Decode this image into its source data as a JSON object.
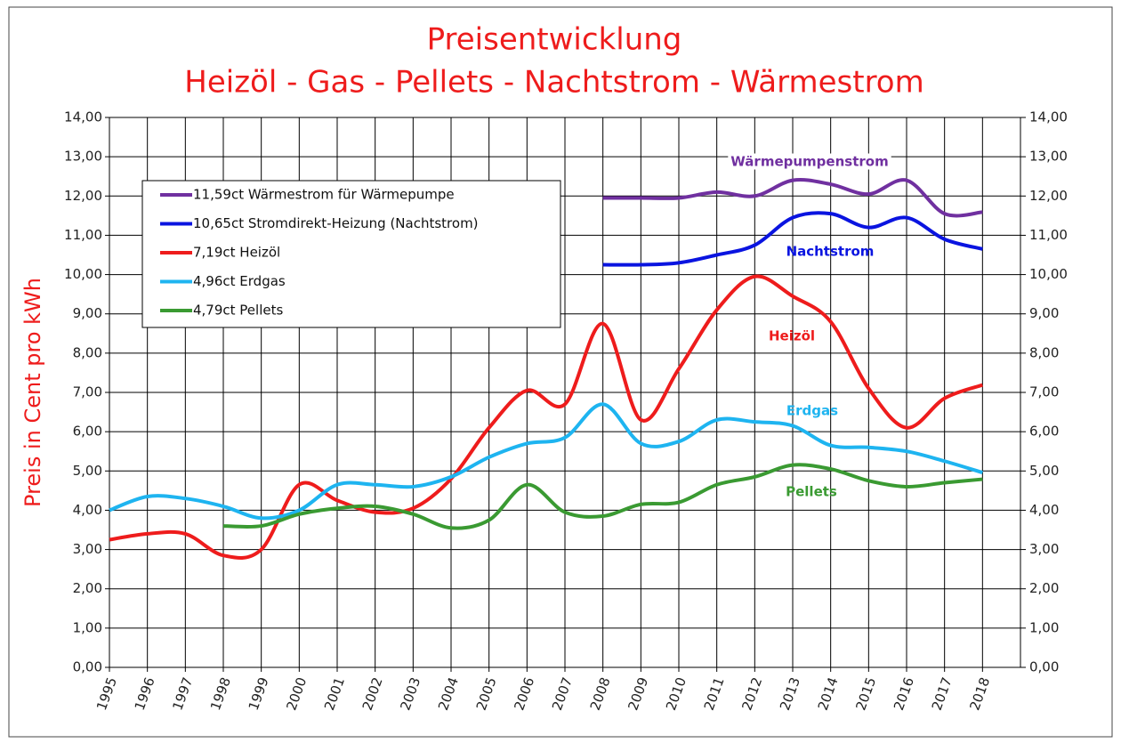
{
  "chart_data": {
    "type": "line",
    "title": [
      "Preisentwicklung",
      "Heizöl - Gas - Pellets - Nachtstrom - Wärmestrom"
    ],
    "y_label": "Preis in Cent pro kWh",
    "x": [
      1995,
      1996,
      1997,
      1998,
      1999,
      2000,
      2001,
      2002,
      2003,
      2004,
      2005,
      2006,
      2007,
      2008,
      2009,
      2010,
      2011,
      2012,
      2013,
      2014,
      2015,
      2016,
      2017,
      2018
    ],
    "xlim": [
      1995,
      2019
    ],
    "xticks": [
      1995,
      1996,
      1997,
      1998,
      1999,
      2000,
      2001,
      2002,
      2003,
      2004,
      2005,
      2006,
      2007,
      2008,
      2009,
      2010,
      2011,
      2012,
      2013,
      2014,
      2015,
      2016,
      2017,
      2018
    ],
    "ylim": [
      0,
      14
    ],
    "yticks": [
      {
        "value": 0,
        "label": "0,00"
      },
      {
        "value": 1,
        "label": "1,00"
      },
      {
        "value": 2,
        "label": "2,00"
      },
      {
        "value": 3,
        "label": "3,00"
      },
      {
        "value": 4,
        "label": "4,00"
      },
      {
        "value": 5,
        "label": "5,00"
      },
      {
        "value": 6,
        "label": "6,00"
      },
      {
        "value": 7,
        "label": "7,00"
      },
      {
        "value": 8,
        "label": "8,00"
      },
      {
        "value": 9,
        "label": "9,00"
      },
      {
        "value": 10,
        "label": "10,00"
      },
      {
        "value": 11,
        "label": "11,00"
      },
      {
        "value": 12,
        "label": "12,00"
      },
      {
        "value": 13,
        "label": "13,00"
      },
      {
        "value": 14,
        "label": "14,00"
      }
    ],
    "y2lim": [
      0,
      14
    ],
    "y2ticks": [
      {
        "value": 0,
        "label": "0,00"
      },
      {
        "value": 1,
        "label": "1,00"
      },
      {
        "value": 2,
        "label": "2,00"
      },
      {
        "value": 3,
        "label": "3,00"
      },
      {
        "value": 4,
        "label": "4,00"
      },
      {
        "value": 5,
        "label": "5,00"
      },
      {
        "value": 6,
        "label": "6,00"
      },
      {
        "value": 7,
        "label": "7,00"
      },
      {
        "value": 8,
        "label": "8,00"
      },
      {
        "value": 9,
        "label": "9,00"
      },
      {
        "value": 10,
        "label": "10,00"
      },
      {
        "value": 11,
        "label": "11,00"
      },
      {
        "value": 12,
        "label": "12,00"
      },
      {
        "value": 13,
        "label": "13,00"
      },
      {
        "value": 14,
        "label": "14,00"
      }
    ],
    "grid": true,
    "legend": "upper left",
    "series": [
      {
        "name": "11,59ct Wärmestrom für Wärmepumpe",
        "color": "#7030a0",
        "annotation": "Wärmepumpenstrom",
        "values": [
          null,
          null,
          null,
          null,
          null,
          null,
          null,
          null,
          null,
          null,
          null,
          null,
          null,
          11.95,
          11.95,
          11.95,
          12.1,
          12.0,
          12.4,
          12.3,
          12.05,
          12.4,
          11.55,
          11.59
        ]
      },
      {
        "name": "10,65ct Stromdirekt-Heizung (Nachtstrom)",
        "color": "#0a14e0",
        "annotation": "Nachtstrom",
        "values": [
          null,
          null,
          null,
          null,
          null,
          null,
          null,
          null,
          null,
          null,
          null,
          null,
          null,
          10.25,
          10.25,
          10.3,
          10.5,
          10.75,
          11.45,
          11.55,
          11.2,
          11.45,
          10.9,
          10.65
        ]
      },
      {
        "name": "7,19ct Heizöl",
        "color": "#ee1c1c",
        "annotation": "Heizöl",
        "values": [
          3.25,
          3.4,
          3.4,
          2.85,
          3.0,
          4.65,
          4.25,
          3.95,
          4.05,
          4.8,
          6.1,
          7.05,
          6.7,
          8.75,
          6.3,
          7.6,
          9.1,
          9.95,
          9.45,
          8.8,
          7.1,
          6.1,
          6.85,
          7.19
        ]
      },
      {
        "name": "4,96ct Erdgas",
        "color": "#1eb4f0",
        "annotation": "Erdgas",
        "values": [
          4.0,
          4.35,
          4.3,
          4.1,
          3.8,
          4.0,
          4.65,
          4.65,
          4.6,
          4.85,
          5.35,
          5.7,
          5.85,
          6.7,
          5.7,
          5.75,
          6.3,
          6.25,
          6.15,
          5.65,
          5.6,
          5.5,
          5.25,
          4.96
        ]
      },
      {
        "name": "4,79ct Pellets",
        "color": "#3a9a32",
        "annotation": "Pellets",
        "values": [
          null,
          null,
          null,
          3.6,
          3.6,
          3.9,
          4.05,
          4.1,
          3.9,
          3.55,
          3.75,
          4.65,
          3.95,
          3.85,
          4.15,
          4.2,
          4.65,
          4.85,
          5.15,
          5.05,
          4.75,
          4.6,
          4.7,
          4.79
        ]
      }
    ]
  }
}
